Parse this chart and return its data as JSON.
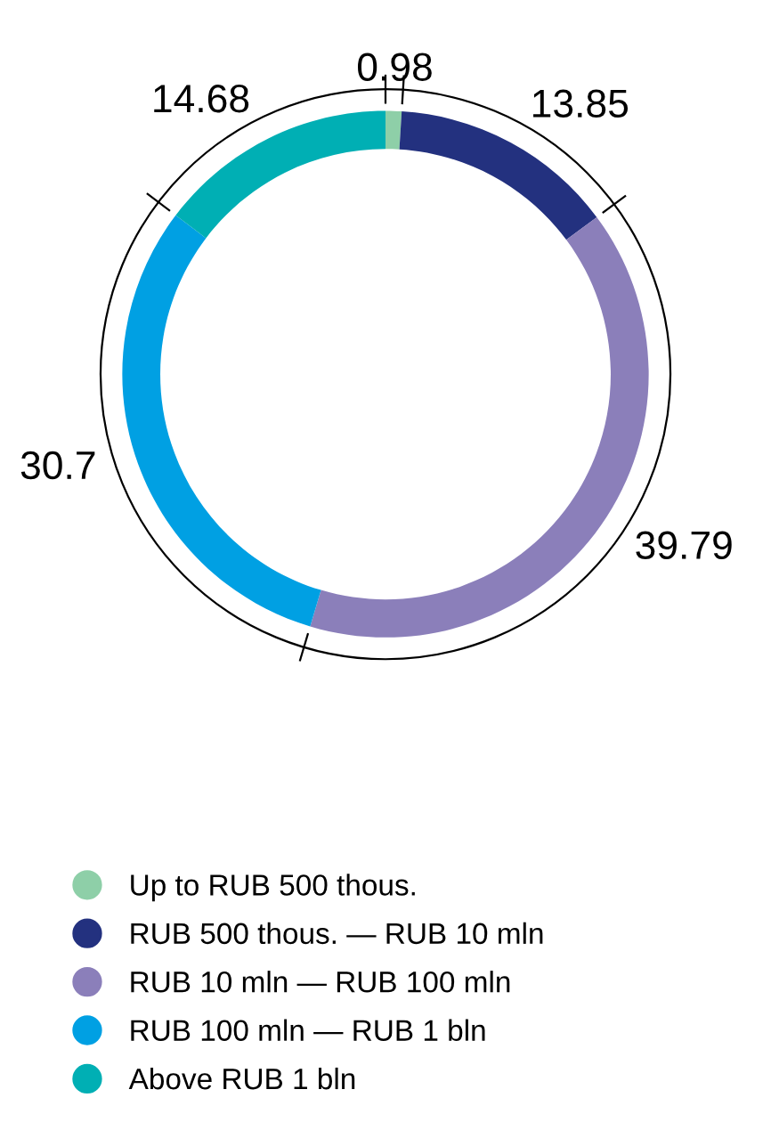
{
  "chart_data": {
    "type": "donut",
    "categories": [
      "Up to RUB 500 thous.",
      "RUB 500 thous. — RUB 10 mln",
      "RUB 10 mln — RUB 100 mln",
      "RUB 100 mln — RUB 1 bln",
      "Above RUB 1 bln"
    ],
    "values": [
      0.98,
      13.85,
      39.79,
      30.7,
      14.68
    ],
    "colors": [
      "#8ecfa8",
      "#23317f",
      "#8b7fba",
      "#00a0e3",
      "#00afb4"
    ],
    "data_labels": true,
    "legend": "bottom"
  }
}
